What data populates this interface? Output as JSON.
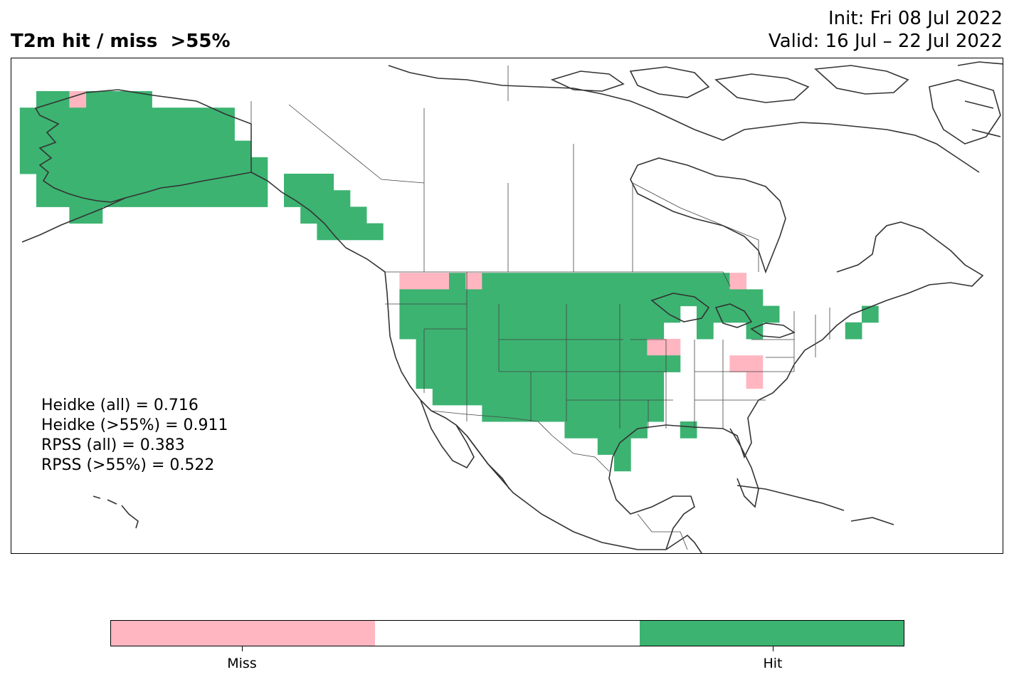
{
  "header": {
    "title": "T2m hit / miss  >55%",
    "init": "Init: Fri 08 Jul 2022",
    "valid": "Valid: 16 Jul – 22 Jul 2022"
  },
  "stats": [
    "Heidke (all) = 0.716",
    "Heidke (>55%) = 0.911",
    "RPSS (all) = 0.383",
    "RPSS (>55%) = 0.522"
  ],
  "colors": {
    "hit": "#3cb371",
    "miss": "#ffb6c1",
    "neutral": "#ffffff",
    "coast": "#333333"
  },
  "legend": {
    "categories": [
      "Miss",
      "",
      "Hit"
    ],
    "tick_labels": [
      "Miss",
      "Hit"
    ]
  },
  "map": {
    "projection": "plate carree",
    "region": "North America",
    "cells": {
      "hit_regions": [
        "Alaska",
        "British Columbia coast",
        "Western United States",
        "Great Plains",
        "Texas",
        "Upper Midwest",
        "Great Lakes",
        "Gulf Coast",
        "New England"
      ],
      "miss_regions": [
        "Washington",
        "Idaho panhandle",
        "Upper Michigan",
        "Missouri/Iowa",
        "West Virginia/Virginia",
        "Western Alaska"
      ]
    }
  }
}
